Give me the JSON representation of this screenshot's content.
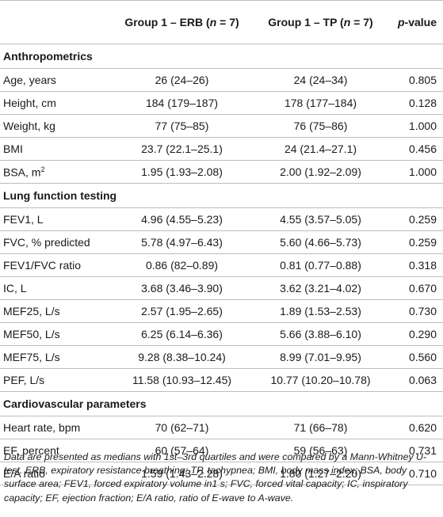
{
  "header": {
    "col1": "",
    "group1_erb_prefix": "Group 1 – ERB (",
    "group1_erb_n": "n",
    "group1_erb_suffix": " = 7)",
    "group1_tp_prefix": "Group 1 – TP (",
    "group1_tp_n": "n",
    "group1_tp_suffix": " = 7)",
    "pvalue_p": "p",
    "pvalue_suffix": "-value"
  },
  "sections": [
    {
      "title": "Anthropometrics",
      "rows": [
        {
          "label": "Age, years",
          "erb": "26 (24–26)",
          "tp": "24 (24–34)",
          "p": "0.805"
        },
        {
          "label": "Height, cm",
          "erb": "184 (179–187)",
          "tp": "178 (177–184)",
          "p": "0.128"
        },
        {
          "label": "Weight, kg",
          "erb": "77 (75–85)",
          "tp": "76 (75–86)",
          "p": "1.000"
        },
        {
          "label": "BMI",
          "erb": "23.7 (22.1–25.1)",
          "tp": "24 (21.4–27.1)",
          "p": "0.456"
        },
        {
          "label": "BSA, m",
          "sup": "2",
          "erb": "1.95 (1.93–2.08)",
          "tp": "2.00 (1.92–2.09)",
          "p": "1.000"
        }
      ]
    },
    {
      "title": "Lung function testing",
      "rows": [
        {
          "label": "FEV1, L",
          "erb": "4.96 (4.55–5.23)",
          "tp": "4.55 (3.57–5.05)",
          "p": "0.259"
        },
        {
          "label": "FVC, % predicted",
          "erb": "5.78 (4.97–6.43)",
          "tp": "5.60 (4.66–5.73)",
          "p": "0.259"
        },
        {
          "label": "FEV1/FVC ratio",
          "erb": "0.86 (82–0.89)",
          "tp": "0.81 (0.77–0.88)",
          "p": "0.318"
        },
        {
          "label": "IC, L",
          "erb": "3.68 (3.46–3.90)",
          "tp": "3.62 (3.21–4.02)",
          "p": "0.670"
        },
        {
          "label": "MEF25, L/s",
          "erb": "2.57 (1.95–2.65)",
          "tp": "1.89 (1.53–2.53)",
          "p": "0.730"
        },
        {
          "label": "MEF50, L/s",
          "erb": "6.25 (6.14–6.36)",
          "tp": "5.66 (3.88–6.10)",
          "p": "0.290"
        },
        {
          "label": "MEF75, L/s",
          "erb": "9.28 (8.38–10.24)",
          "tp": "8.99 (7.01–9.95)",
          "p": "0.560"
        },
        {
          "label": "PEF, L/s",
          "erb": "11.58 (10.93–12.45)",
          "tp": "10.77 (10.20–10.78)",
          "p": "0.063"
        }
      ]
    },
    {
      "title": "Cardiovascular parameters",
      "rows": [
        {
          "label": "Heart rate, bpm",
          "erb": "70 (62–71)",
          "tp": "71 (66–78)",
          "p": "0.620"
        },
        {
          "label": "EF, percent",
          "erb": "60 (57–64)",
          "tp": "59 (56–63)",
          "p": "0.731"
        },
        {
          "label": "E/A ratio",
          "erb": "1.59 (1.43–2.28)",
          "tp": "1.80 (1.27–2.20)",
          "p": "0.710"
        }
      ]
    }
  ],
  "footnote": "Data are presented as medians with 1st–3rd quartiles and were compared by a Mann-Whitney U-test. ERB, expiratory resistance breathing; TP, tachypnea; BMI, body mass index; BSA, body surface area; FEV1, forced expiratory volume in1 s; FVC, forced vital capacity; IC, inspiratory capacity; EF, ejection fraction; E/A ratio, ratio of E-wave to A-wave."
}
